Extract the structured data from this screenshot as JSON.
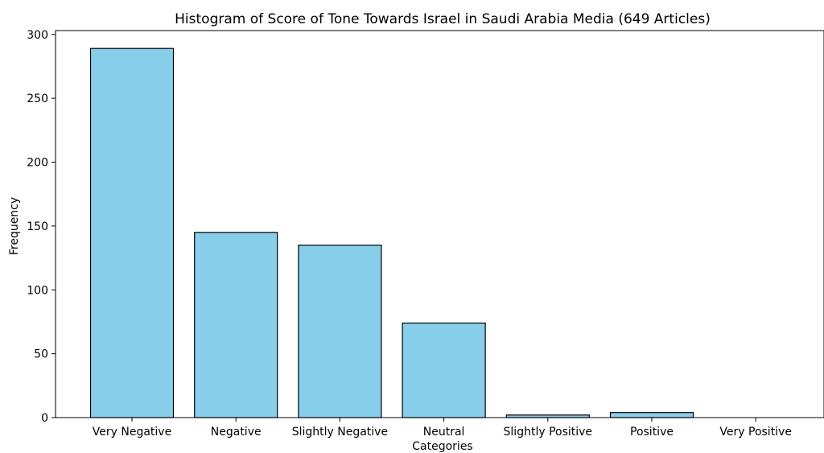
{
  "chart_data": {
    "type": "bar",
    "title": "Histogram of Score of Tone Towards Israel in Saudi Arabia Media  (649 Articles)",
    "xlabel": "Categories",
    "ylabel": "Frequency",
    "categories": [
      "Very Negative",
      "Negative",
      "Slightly Negative",
      "Neutral",
      "Slightly Positive",
      "Positive",
      "Very Positive"
    ],
    "values": [
      289,
      145,
      135,
      74,
      2,
      4,
      0
    ],
    "ylim": [
      0,
      303
    ],
    "yticks": [
      "0",
      "50",
      "100",
      "150",
      "200",
      "250",
      "300"
    ],
    "grid": false,
    "bar_color": "#87ceeb",
    "edge_color": "#000000"
  }
}
